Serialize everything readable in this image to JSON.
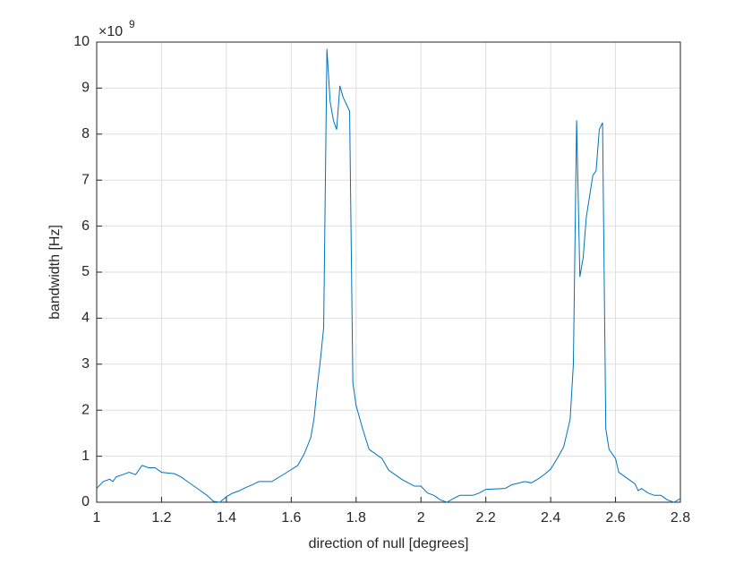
{
  "chart_data": {
    "type": "line",
    "xlabel": "direction of null [degrees]",
    "ylabel": "bandwidth [Hz]",
    "y_exponent_base": "×10",
    "y_exponent_power": "9",
    "xlim": [
      1,
      2.8
    ],
    "xticks": [
      1,
      1.2,
      1.4,
      1.6,
      1.8,
      2,
      2.2,
      2.4,
      2.6,
      2.8
    ],
    "ylim": [
      0,
      10
    ],
    "yticks": [
      0,
      1,
      2,
      3,
      4,
      5,
      6,
      7,
      8,
      9,
      10
    ],
    "grid": true,
    "series": [
      {
        "color": "#0072bd",
        "x": [
          1.0,
          1.02,
          1.04,
          1.05,
          1.06,
          1.08,
          1.1,
          1.12,
          1.14,
          1.16,
          1.18,
          1.2,
          1.24,
          1.26,
          1.28,
          1.3,
          1.32,
          1.34,
          1.36,
          1.38,
          1.4,
          1.42,
          1.44,
          1.46,
          1.48,
          1.5,
          1.54,
          1.58,
          1.62,
          1.64,
          1.66,
          1.67,
          1.68,
          1.69,
          1.7,
          1.71,
          1.72,
          1.73,
          1.74,
          1.75,
          1.76,
          1.78,
          1.79,
          1.8,
          1.82,
          1.84,
          1.86,
          1.88,
          1.9,
          1.94,
          1.98,
          2.0,
          2.02,
          2.04,
          2.06,
          2.08,
          2.1,
          2.12,
          2.16,
          2.18,
          2.2,
          2.26,
          2.28,
          2.32,
          2.34,
          2.36,
          2.38,
          2.4,
          2.42,
          2.44,
          2.46,
          2.47,
          2.48,
          2.49,
          2.5,
          2.51,
          2.53,
          2.54,
          2.55,
          2.56,
          2.57,
          2.58,
          2.6,
          2.61,
          2.64,
          2.66,
          2.67,
          2.68,
          2.7,
          2.72,
          2.74,
          2.76,
          2.78,
          2.8
        ],
        "values": [
          0.3,
          0.45,
          0.5,
          0.45,
          0.55,
          0.6,
          0.65,
          0.6,
          0.8,
          0.75,
          0.75,
          0.65,
          0.62,
          0.55,
          0.45,
          0.35,
          0.25,
          0.15,
          0.02,
          0,
          0.12,
          0.2,
          0.25,
          0.32,
          0.38,
          0.45,
          0.45,
          0.62,
          0.8,
          1.05,
          1.4,
          1.8,
          2.5,
          3.1,
          3.8,
          9.85,
          8.7,
          8.3,
          8.1,
          9.05,
          8.8,
          8.5,
          2.6,
          2.1,
          1.6,
          1.15,
          1.05,
          0.95,
          0.7,
          0.5,
          0.35,
          0.35,
          0.2,
          0.15,
          0.05,
          0,
          0.08,
          0.15,
          0.15,
          0.2,
          0.28,
          0.3,
          0.38,
          0.45,
          0.42,
          0.5,
          0.6,
          0.72,
          0.95,
          1.2,
          1.8,
          3.0,
          8.3,
          4.9,
          5.3,
          6.2,
          7.1,
          7.2,
          8.1,
          8.25,
          1.6,
          1.15,
          0.95,
          0.65,
          0.5,
          0.4,
          0.25,
          0.3,
          0.2,
          0.15,
          0.15,
          0.05,
          0,
          0.08
        ]
      }
    ]
  }
}
